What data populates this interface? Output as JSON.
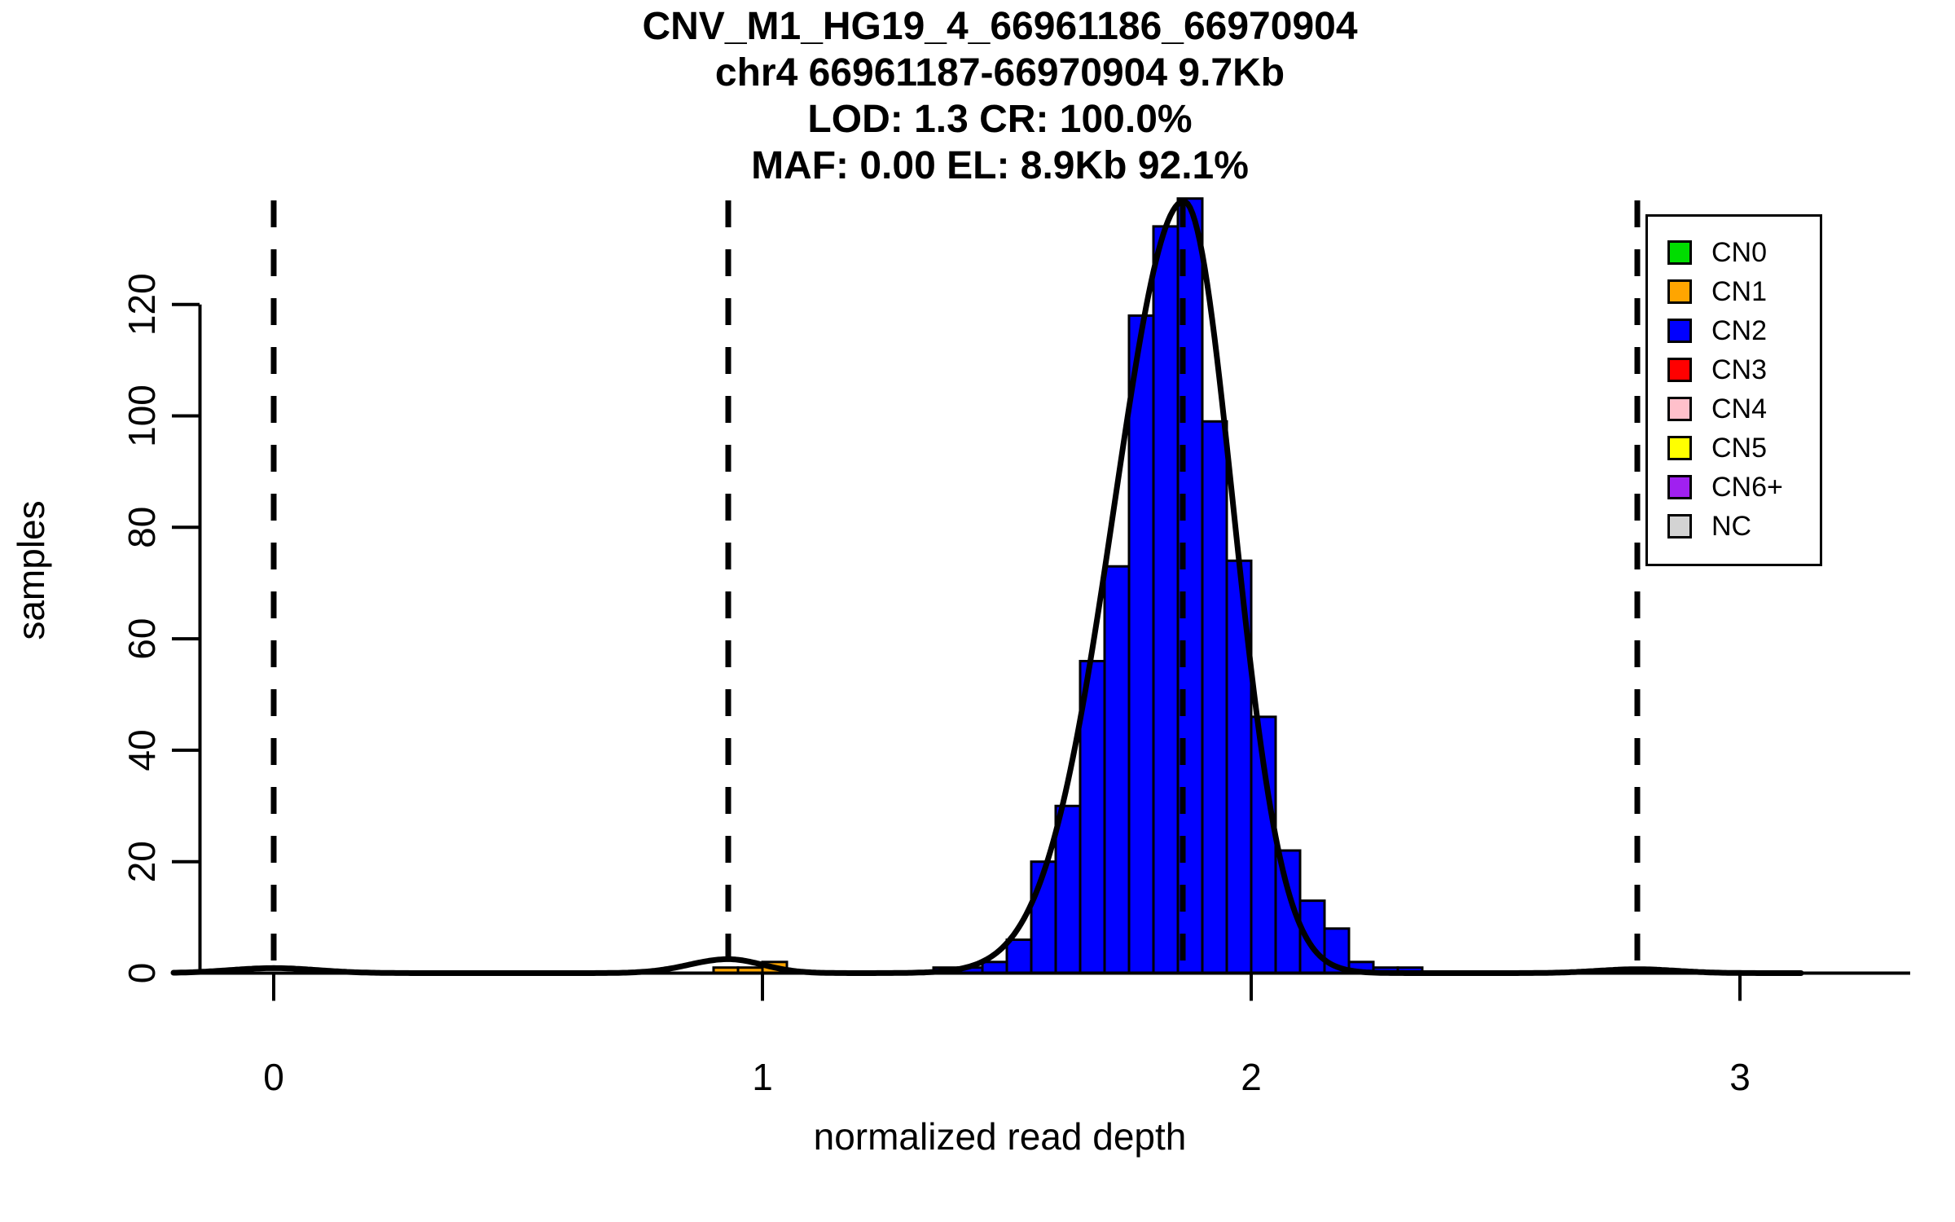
{
  "title": {
    "line1": "CNV_M1_HG19_4_66961186_66970904",
    "line2": "chr4 66961187-66970904 9.7Kb",
    "line3": "LOD: 1.3 CR: 100.0%",
    "line4": "MAF: 0.00 EL: 8.9Kb 92.1%"
  },
  "axes": {
    "x_label": "normalized read depth",
    "y_label": "samples",
    "x_ticks": [
      0,
      1,
      2,
      3
    ],
    "y_ticks": [
      0,
      20,
      40,
      60,
      80,
      100,
      120
    ]
  },
  "legend": {
    "items": [
      {
        "label": "CN0",
        "color": "#00DD00"
      },
      {
        "label": "CN1",
        "color": "#FFA500"
      },
      {
        "label": "CN2",
        "color": "#0000FF"
      },
      {
        "label": "CN3",
        "color": "#FF0000"
      },
      {
        "label": "CN4",
        "color": "#FFC0CB"
      },
      {
        "label": "CN5",
        "color": "#FFFF00"
      },
      {
        "label": "CN6+",
        "color": "#A020F0"
      },
      {
        "label": "NC",
        "color": "#D3D3D3"
      }
    ]
  },
  "chart_data": {
    "type": "bar",
    "subtype": "histogram-with-density-fit",
    "title": "CNV_M1_HG19_4_66961186_66970904 / chr4 66961187-66970904 9.7Kb / LOD: 1.3 CR: 100.0% / MAF: 0.00 EL: 8.9Kb 92.1%",
    "xlabel": "normalized read depth",
    "ylabel": "samples",
    "xlim": [
      -0.2,
      3.35
    ],
    "ylim": [
      0,
      140
    ],
    "grid": false,
    "legend_position": "top-right",
    "bin_width": 0.05,
    "bins_format": "each bin = {start: left edge in x units, count: samples}",
    "series": [
      {
        "name": "CN1",
        "color": "#FFA500",
        "bins": [
          {
            "start": 0.9,
            "count": 1
          },
          {
            "start": 0.95,
            "count": 1
          },
          {
            "start": 1.0,
            "count": 2
          }
        ]
      },
      {
        "name": "CN2",
        "color": "#0000FF",
        "bins": [
          {
            "start": 1.35,
            "count": 1
          },
          {
            "start": 1.4,
            "count": 1
          },
          {
            "start": 1.45,
            "count": 2
          },
          {
            "start": 1.5,
            "count": 6
          },
          {
            "start": 1.55,
            "count": 20
          },
          {
            "start": 1.6,
            "count": 30
          },
          {
            "start": 1.65,
            "count": 56
          },
          {
            "start": 1.7,
            "count": 73
          },
          {
            "start": 1.75,
            "count": 118
          },
          {
            "start": 1.8,
            "count": 134
          },
          {
            "start": 1.85,
            "count": 139
          },
          {
            "start": 1.9,
            "count": 99
          },
          {
            "start": 1.95,
            "count": 74
          },
          {
            "start": 2.0,
            "count": 46
          },
          {
            "start": 2.05,
            "count": 22
          },
          {
            "start": 2.1,
            "count": 13
          },
          {
            "start": 2.15,
            "count": 8
          },
          {
            "start": 2.2,
            "count": 2
          },
          {
            "start": 2.25,
            "count": 1
          },
          {
            "start": 2.3,
            "count": 1
          }
        ]
      }
    ],
    "fit_curve": {
      "description": "black gaussian-mixture density fit overlay",
      "components": [
        {
          "mean": 0.0,
          "sigma_left": 0.09,
          "sigma_right": 0.09,
          "peak": 0.9
        },
        {
          "mean": 0.93,
          "sigma_left": 0.08,
          "sigma_right": 0.07,
          "peak": 2.5
        },
        {
          "mean": 1.862,
          "sigma_left": 0.142,
          "sigma_right": 0.101,
          "peak": 138.5
        },
        {
          "mean": 2.79,
          "sigma_left": 0.08,
          "sigma_right": 0.08,
          "peak": 0.7
        }
      ]
    },
    "dashed_lines_x": [
      0.0,
      0.93,
      1.86,
      2.79
    ]
  }
}
